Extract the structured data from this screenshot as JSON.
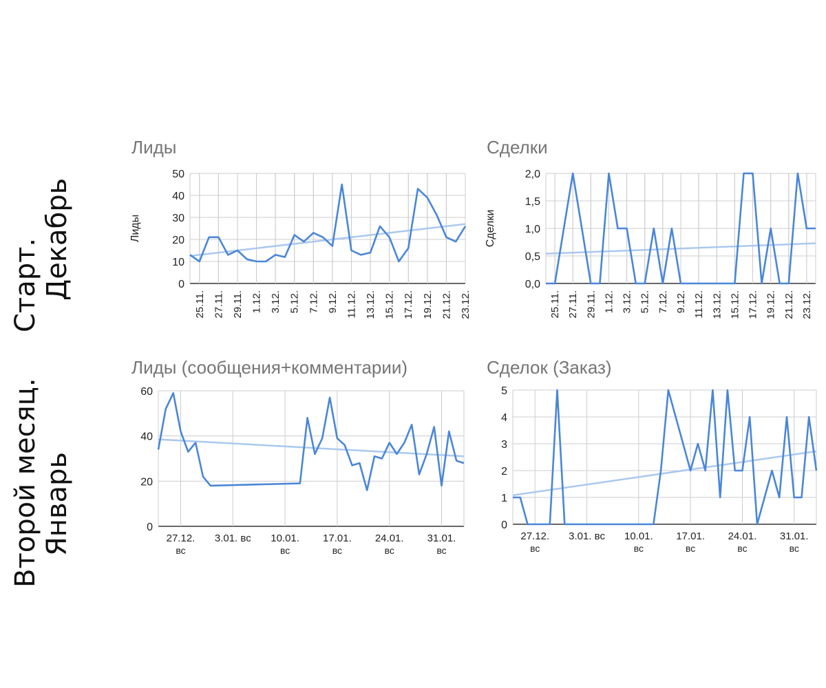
{
  "row_labels": [
    {
      "line1": "Старт.",
      "line2": "Декабрь"
    },
    {
      "line1": "Второй месяц.",
      "line2": "Январь"
    }
  ],
  "colors": {
    "series": "#4a86d8",
    "trend": "#aac8ef",
    "grid": "#cccccc",
    "axis": "#333333",
    "title": "#757575"
  },
  "chart_data": [
    {
      "type": "line",
      "title": "Лиды",
      "ylabel": "Лиды",
      "xlabel": "",
      "ylim": [
        0,
        50
      ],
      "yticks": [
        "0",
        "10",
        "20",
        "30",
        "40",
        "50"
      ],
      "x_tick_labels": [
        "25.11.",
        "27.11.",
        "29.11.",
        "1.12.",
        "3.12.",
        "5.12.",
        "7.12.",
        "9.12.",
        "11.12.",
        "13.12.",
        "15.12.",
        "17.12.",
        "19.12.",
        "21.12.",
        "23.12."
      ],
      "x": [
        "24.11.",
        "25.11.",
        "26.11.",
        "27.11.",
        "28.11.",
        "29.11.",
        "30.11.",
        "1.12.",
        "2.12.",
        "3.12.",
        "4.12.",
        "5.12.",
        "6.12.",
        "7.12.",
        "8.12.",
        "9.12.",
        "10.12.",
        "11.12.",
        "12.12.",
        "13.12.",
        "14.12.",
        "15.12.",
        "16.12.",
        "17.12.",
        "18.12.",
        "19.12.",
        "20.12.",
        "21.12.",
        "22.12.",
        "23.12."
      ],
      "series": [
        {
          "values": [
            13,
            10,
            21,
            21,
            13,
            15,
            11,
            10,
            10,
            13,
            12,
            22,
            19,
            23,
            21,
            17,
            45,
            15,
            13,
            14,
            26,
            21,
            10,
            16,
            43,
            39,
            31,
            21,
            19,
            26
          ]
        }
      ],
      "trendline": [
        12.5,
        27.0
      ],
      "grid": true
    },
    {
      "type": "line",
      "title": "Сделки",
      "ylabel": "Сделки",
      "xlabel": "",
      "ylim": [
        0,
        2
      ],
      "yticks": [
        "0,0",
        "0,5",
        "1,0",
        "1,5",
        "2,0"
      ],
      "x_tick_labels": [
        "25.11.",
        "27.11.",
        "29.11.",
        "1.12.",
        "3.12.",
        "5.12.",
        "7.12.",
        "9.12.",
        "11.12.",
        "13.12.",
        "15.12.",
        "17.12.",
        "19.12.",
        "21.12.",
        "23.12."
      ],
      "x": [
        "24.11.",
        "25.11.",
        "26.11.",
        "27.11.",
        "28.11.",
        "29.11.",
        "30.11.",
        "1.12.",
        "2.12.",
        "3.12.",
        "4.12.",
        "5.12.",
        "6.12.",
        "7.12.",
        "8.12.",
        "9.12.",
        "10.12.",
        "11.12.",
        "12.12.",
        "13.12.",
        "14.12.",
        "15.12.",
        "16.12.",
        "17.12.",
        "18.12.",
        "19.12.",
        "20.12.",
        "21.12.",
        "22.12.",
        "23.12.",
        "24.12."
      ],
      "series": [
        {
          "values": [
            0,
            0,
            1,
            2,
            1,
            0,
            0,
            2,
            1,
            1,
            0,
            0,
            1,
            0,
            1,
            0,
            0,
            0,
            0,
            0,
            0,
            0,
            2,
            2,
            0,
            1,
            0,
            0,
            2,
            1,
            1
          ]
        }
      ],
      "trendline": [
        0.54,
        0.73
      ],
      "grid": true
    },
    {
      "type": "line",
      "title": "Лиды (сообщения+комментарии)",
      "ylabel": "",
      "xlabel": "",
      "ylim": [
        0,
        60
      ],
      "yticks": [
        "0",
        "20",
        "40",
        "60"
      ],
      "x_tick_labels": [
        {
          "day": 3,
          "line1": "27.12.",
          "line2": "вс"
        },
        {
          "day": 10,
          "line1": "3.01. вс",
          "line2": ""
        },
        {
          "day": 17,
          "line1": "10.01.",
          "line2": "вс"
        },
        {
          "day": 24,
          "line1": "17.01.",
          "line2": "вс"
        },
        {
          "day": 31,
          "line1": "24.01.",
          "line2": "вс"
        },
        {
          "day": 38,
          "line1": "31.01.",
          "line2": "вс"
        }
      ],
      "x_range_days": [
        0,
        41
      ],
      "x_days": [
        0,
        1,
        2,
        3,
        4,
        5,
        6,
        7,
        19,
        20,
        21,
        22,
        23,
        24,
        25,
        26,
        27,
        28,
        29,
        30,
        31,
        32,
        33,
        34,
        35,
        36,
        37,
        38,
        39,
        40,
        41
      ],
      "series": [
        {
          "values": [
            34,
            52,
            59,
            42,
            33,
            37,
            22,
            18,
            19,
            48,
            32,
            39,
            57,
            39,
            36,
            27,
            28,
            16,
            31,
            30,
            37,
            32,
            37,
            45,
            23,
            32,
            44,
            18,
            42,
            29,
            28
          ]
        }
      ],
      "trendline": [
        38.5,
        31.0
      ],
      "grid": true
    },
    {
      "type": "line",
      "title": "Сделок (Заказ)",
      "ylabel": "",
      "xlabel": "",
      "ylim": [
        0,
        5
      ],
      "yticks": [
        "0",
        "1",
        "2",
        "3",
        "4",
        "5"
      ],
      "x_tick_labels": [
        {
          "day": 3,
          "line1": "27.12.",
          "line2": "вс"
        },
        {
          "day": 10,
          "line1": "3.01. вс",
          "line2": ""
        },
        {
          "day": 17,
          "line1": "10.01.",
          "line2": "вс"
        },
        {
          "day": 24,
          "line1": "17.01.",
          "line2": "вс"
        },
        {
          "day": 31,
          "line1": "24.01.",
          "line2": "вс"
        },
        {
          "day": 38,
          "line1": "31.01.",
          "line2": "вс"
        }
      ],
      "x_range_days": [
        0,
        41
      ],
      "x_days": [
        0,
        1,
        2,
        5,
        6,
        7,
        19,
        20,
        21,
        23,
        24,
        25,
        26,
        27,
        28,
        29,
        30,
        31,
        32,
        33,
        35,
        36,
        37,
        38,
        39,
        40,
        41
      ],
      "series": [
        {
          "values": [
            1,
            1,
            0,
            0,
            5,
            0,
            0,
            2,
            5,
            3,
            2,
            3,
            2,
            5,
            1,
            5,
            2,
            2,
            4,
            0,
            2,
            1,
            4,
            1,
            1,
            4,
            2
          ]
        }
      ],
      "trendline": [
        1.08,
        2.72
      ],
      "grid": true
    }
  ]
}
